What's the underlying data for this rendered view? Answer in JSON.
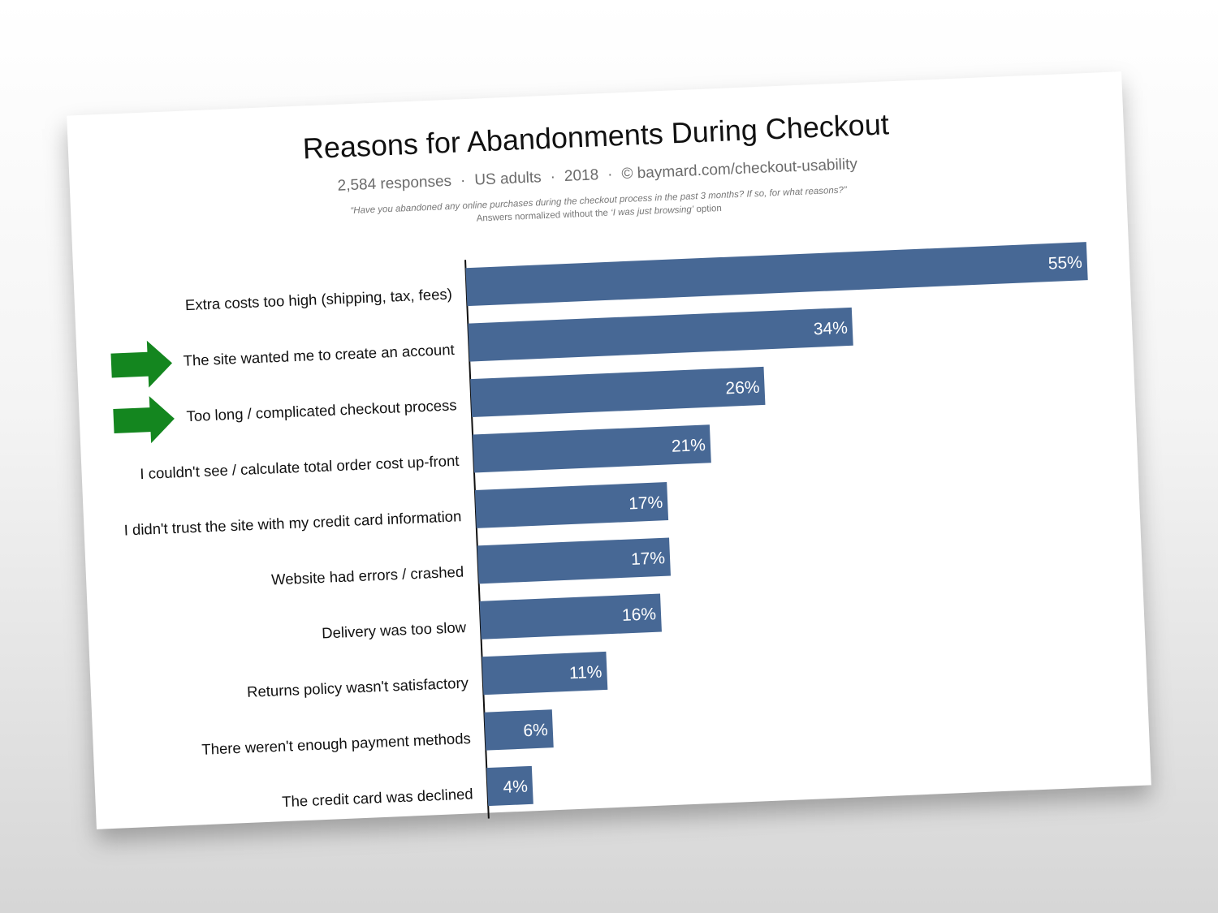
{
  "chart_data": {
    "type": "bar",
    "orientation": "horizontal",
    "title": "Reasons for Abandonments During Checkout",
    "subtitle": [
      "2,584 responses",
      "US adults",
      "2018",
      "baymard.com/checkout-usability"
    ],
    "subtitle_separator": "·",
    "copyright_symbol": "©",
    "question": "“Have you abandoned any online purchases during the checkout process in the past 3 months? If so, for what reasons?”",
    "note_prefix": "Answers normalized without the ",
    "note_quoted": "‘I was just browsing’",
    "note_suffix": " option",
    "categories": [
      "Extra costs too high (shipping, tax, fees)",
      "The site wanted me to create an account",
      "Too long / complicated checkout process",
      "I couldn't see / calculate total order cost up-front",
      "I didn't trust the site with my credit card information",
      "Website had errors / crashed",
      "Delivery was too slow",
      "Returns policy wasn't satisfactory",
      "There weren't enough payment methods",
      "The credit card was declined"
    ],
    "values": [
      55,
      34,
      26,
      21,
      17,
      17,
      16,
      11,
      6,
      4
    ],
    "value_labels": [
      "55%",
      "34%",
      "26%",
      "21%",
      "17%",
      "17%",
      "16%",
      "11%",
      "6%",
      "4%"
    ],
    "highlighted": [
      1,
      2
    ],
    "xlim": [
      0,
      55
    ],
    "grid": false,
    "legend": "none",
    "colors": {
      "bar": "#476895",
      "bar_label": "#ffffff",
      "arrow": "#14861f",
      "axis": "#111111",
      "label": "#111111"
    }
  }
}
